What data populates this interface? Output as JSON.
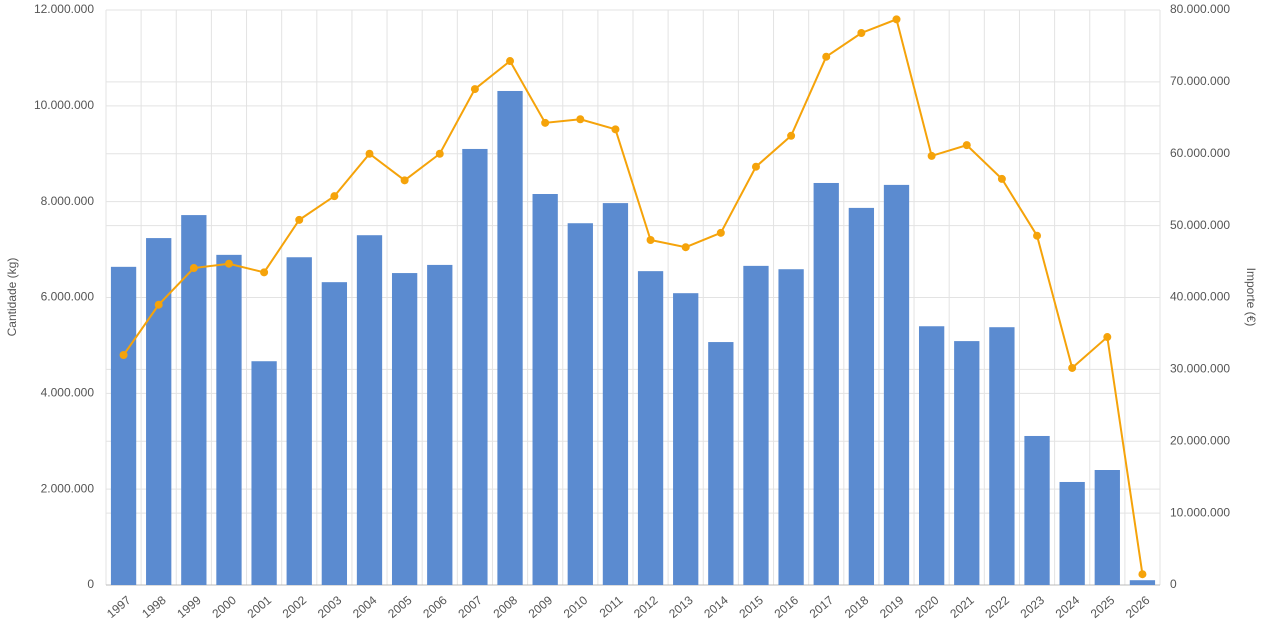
{
  "chart_data": {
    "type": "bar_line",
    "y_label": "Cantidade (kg)",
    "y2_label": "Importe (€)",
    "categories": [
      "1997",
      "1998",
      "1999",
      "2000",
      "2001",
      "2002",
      "2003",
      "2004",
      "2005",
      "2006",
      "2007",
      "2008",
      "2009",
      "2010",
      "2011",
      "2012",
      "2013",
      "2014",
      "2015",
      "2016",
      "2017",
      "2018",
      "2019",
      "2020",
      "2021",
      "2022",
      "2023",
      "2024",
      "2025",
      "2026"
    ],
    "series": [
      {
        "type": "bar",
        "color": "#5b8bd0",
        "values": [
          6640000,
          7240000,
          7720000,
          6890000,
          4670000,
          6840000,
          6320000,
          7300000,
          6510000,
          6680000,
          9100000,
          10310000,
          8160000,
          7550000,
          7970000,
          6550000,
          6090000,
          5070000,
          6660000,
          6590000,
          8390000,
          7870000,
          8350000,
          5400000,
          5090000,
          5380000,
          3110000,
          2150000,
          2400000,
          100000
        ]
      },
      {
        "type": "line",
        "axis": "y2",
        "color": "#f5a30a",
        "values": [
          32000000,
          39000000,
          44100000,
          44700000,
          43500000,
          50800000,
          54100000,
          60000000,
          56300000,
          60000000,
          69000000,
          72900000,
          64300000,
          64800000,
          63400000,
          48000000,
          47000000,
          49000000,
          58200000,
          62500000,
          73500000,
          76800000,
          78700000,
          59700000,
          61200000,
          56500000,
          48600000,
          30200000,
          34500000,
          1500000
        ]
      }
    ],
    "ylim": [
      0,
      12000000
    ],
    "yticks": [
      0,
      {
        "value": 2000000,
        "label": "2.000.000"
      },
      {
        "value": 4000000,
        "label": "4.000.000"
      },
      {
        "value": 6000000,
        "label": "6.000.000"
      },
      {
        "value": 8000000,
        "label": "8.000.000"
      },
      {
        "value": 10000000,
        "label": "10.000.000"
      },
      {
        "value": 12000000,
        "label": "12.000.000"
      }
    ],
    "y2lim": [
      0,
      80000000
    ],
    "y2ticks": [
      0,
      {
        "value": 10000000,
        "label": "10.000.000"
      },
      {
        "value": 20000000,
        "label": "20.000.000"
      },
      {
        "value": 30000000,
        "label": "30.000.000"
      },
      {
        "value": 40000000,
        "label": "40.000.000"
      },
      {
        "value": 50000000,
        "label": "50.000.000"
      },
      {
        "value": 60000000,
        "label": "60.000.000"
      },
      {
        "value": 70000000,
        "label": "70.000.000"
      },
      {
        "value": 80000000,
        "label": "80.000.000"
      }
    ],
    "grid": true
  }
}
